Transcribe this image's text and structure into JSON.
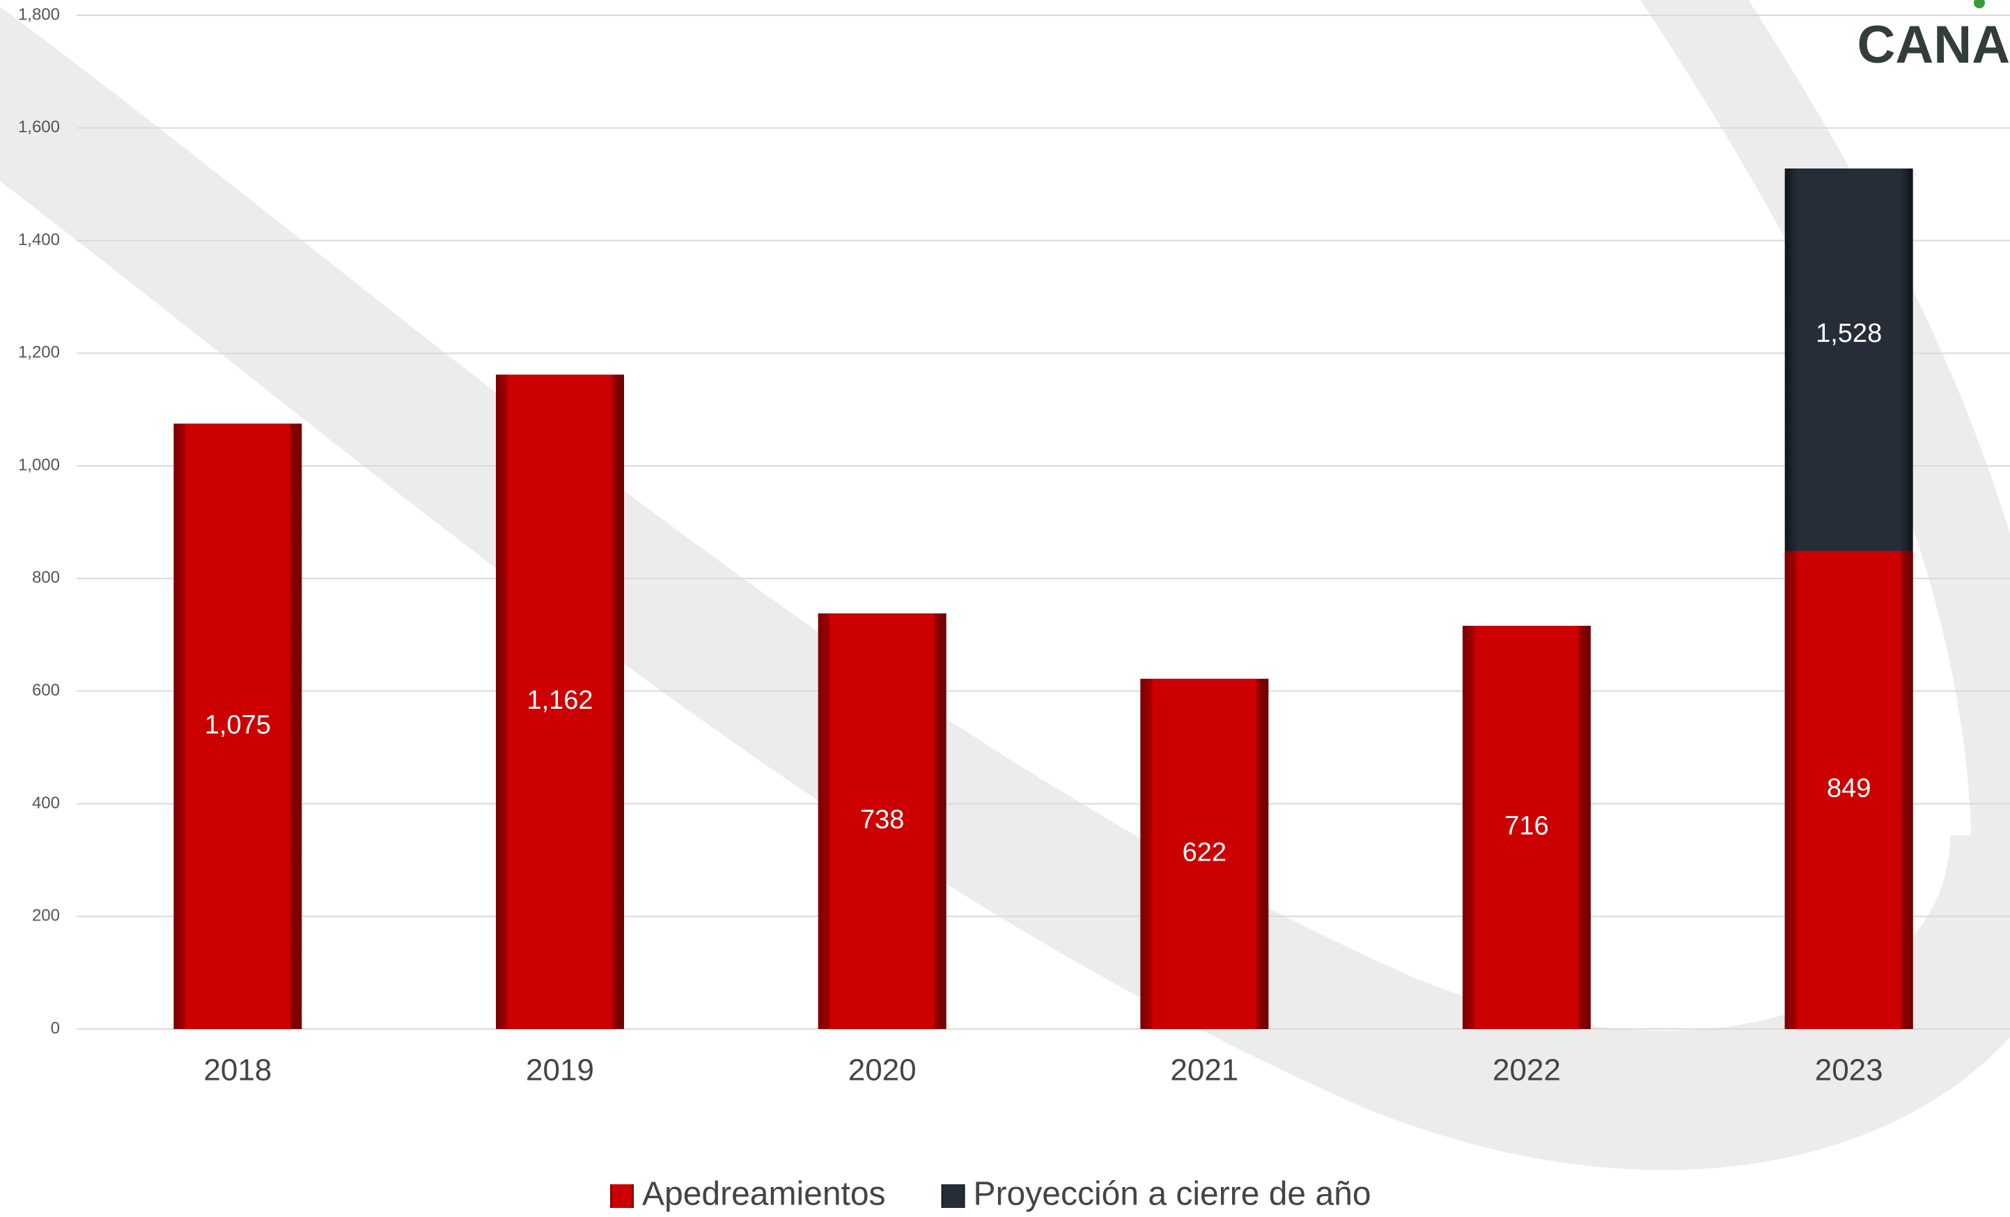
{
  "logo_text": "CANA",
  "chart_data": {
    "type": "bar",
    "categories": [
      "2018",
      "2019",
      "2020",
      "2021",
      "2022",
      "2023"
    ],
    "series": [
      {
        "name": "Apedreamientos",
        "color": "#cc0000",
        "values": [
          1075,
          1162,
          738,
          622,
          716,
          849
        ],
        "value_labels": [
          "1,075",
          "1,162",
          "738",
          "622",
          "716",
          "849"
        ]
      },
      {
        "name": "Proyección a cierre de año",
        "color": "#272d38",
        "values": [
          null,
          null,
          null,
          null,
          null,
          1528
        ],
        "value_labels": [
          null,
          null,
          null,
          null,
          null,
          "1,528"
        ]
      }
    ],
    "ylim": [
      0,
      1800
    ],
    "yticks": [
      0,
      200,
      400,
      600,
      800,
      {
        "value": 1000,
        "label": "1,000"
      },
      {
        "value": 1200,
        "label": "1,200"
      },
      {
        "value": 1400,
        "label": "1,400"
      },
      {
        "value": 1600,
        "label": "1,600"
      },
      {
        "value": 1800,
        "label": "1,800"
      }
    ],
    "grid": true,
    "legend": "bottom"
  }
}
